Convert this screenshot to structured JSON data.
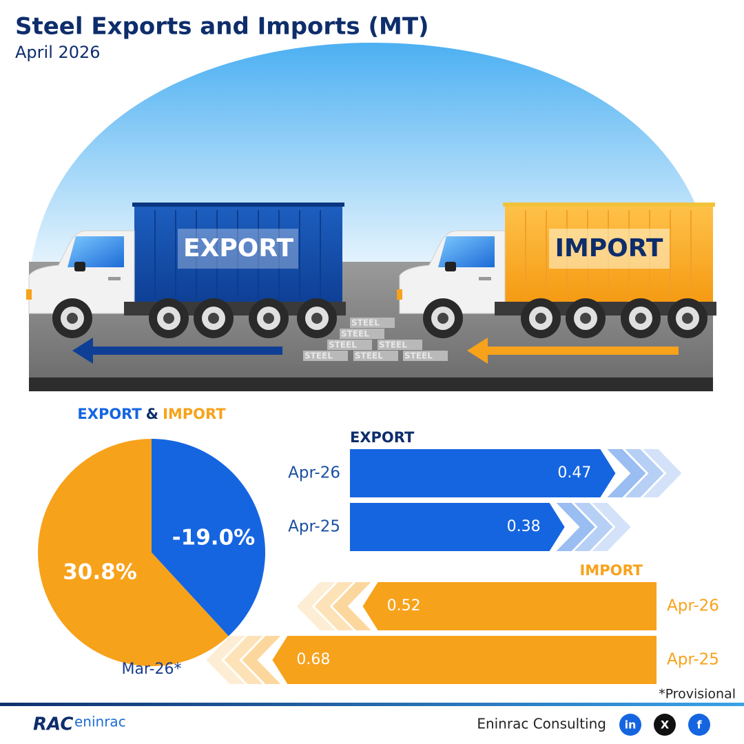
{
  "header": {
    "title": "Steel Exports and Imports (MT)",
    "subtitle": "April 2026"
  },
  "illustration": {
    "export_label": "EXPORT",
    "import_label": "IMPORT",
    "cargo_label": "STEEL"
  },
  "chart_data": [
    {
      "type": "pie",
      "categories": [
        "EXPORT",
        "IMPORT"
      ],
      "joiner": "&",
      "values": [
        -19.0,
        30.8
      ],
      "value_labels": [
        "-19.0%",
        "30.8%"
      ],
      "colors": [
        "#1565e0",
        "#f7a21b"
      ],
      "period": "Mar-26*"
    },
    {
      "type": "bar",
      "direction": "right",
      "title": "EXPORT",
      "categories": [
        "Apr-26",
        "Apr-25"
      ],
      "values": [
        0.47,
        0.38
      ],
      "color": "#1565e0"
    },
    {
      "type": "bar",
      "direction": "left",
      "title": "IMPORT",
      "categories": [
        "Apr-26",
        "Apr-25"
      ],
      "values": [
        0.52,
        0.68
      ],
      "color": "#f7a21b"
    }
  ],
  "footnote": "*Provisional",
  "footer": {
    "logo_main": "RAC",
    "logo_sub": "eninrac",
    "company": "Eninrac Consulting",
    "social": [
      "in",
      "X",
      "f"
    ]
  }
}
